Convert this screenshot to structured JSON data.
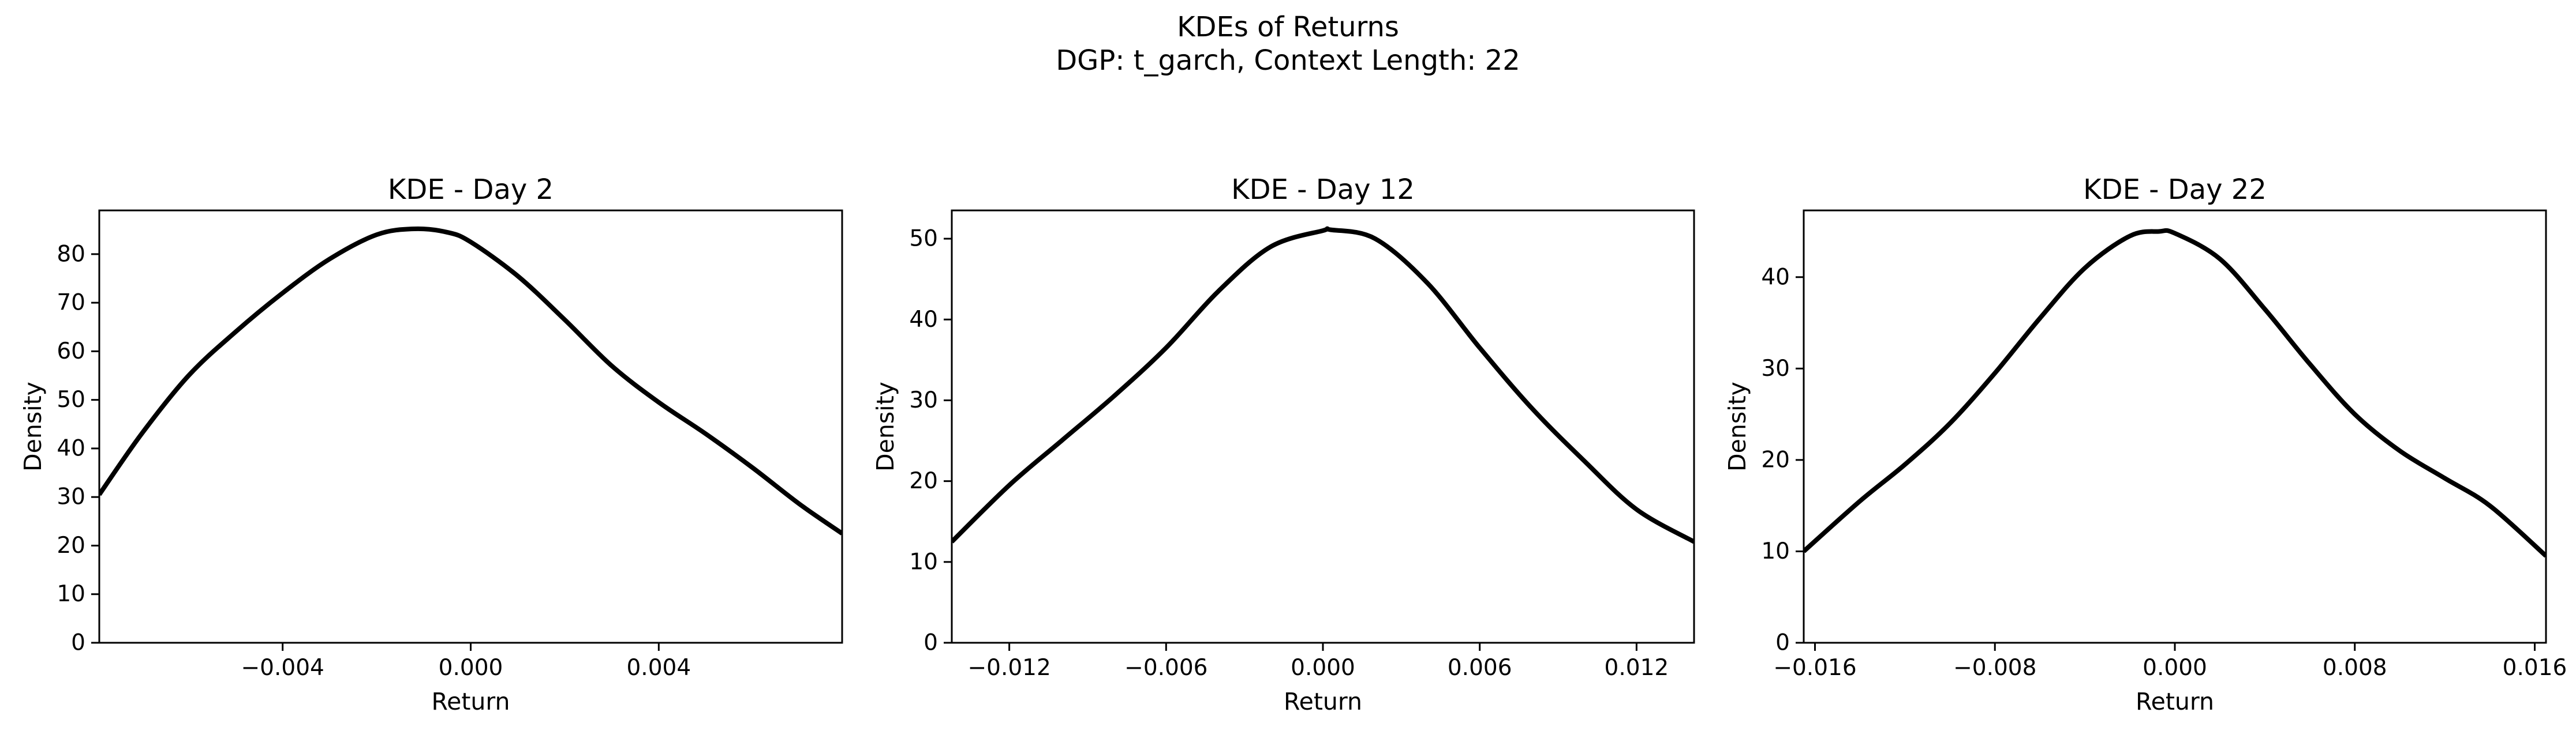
{
  "figure": {
    "title_line1": "KDEs of Returns",
    "title_line2": "DGP: t_garch, Context Length: 22"
  },
  "colors": {
    "line": "#000000",
    "axes": "#000000",
    "background": "#ffffff"
  },
  "chart_data": [
    {
      "type": "line",
      "title": "KDE - Day 2",
      "xlabel": "Return",
      "ylabel": "Density",
      "xlim": [
        -0.0079,
        0.0079
      ],
      "ylim": [
        0,
        89
      ],
      "xticks": [
        -0.004,
        0.0,
        0.004
      ],
      "xtick_labels": [
        "−0.004",
        "0.000",
        "0.004"
      ],
      "yticks": [
        0,
        10,
        20,
        30,
        40,
        50,
        60,
        70,
        80
      ],
      "ytick_labels": [
        "0",
        "10",
        "20",
        "30",
        "40",
        "50",
        "60",
        "70",
        "80"
      ],
      "grid": false,
      "series": [
        {
          "x": [
            -0.0079,
            -0.007,
            -0.006,
            -0.005,
            -0.004,
            -0.003,
            -0.002,
            -0.0012,
            -0.0005,
            0.0,
            0.001,
            0.002,
            0.003,
            0.004,
            0.005,
            0.006,
            0.007,
            0.0079
          ],
          "y": [
            30.5,
            43,
            55,
            64,
            72,
            79,
            84,
            85.2,
            84.5,
            82.5,
            75.5,
            66.5,
            57,
            49.5,
            43,
            36,
            28.5,
            22.5
          ]
        }
      ]
    },
    {
      "type": "line",
      "title": "KDE - Day 12",
      "xlabel": "Return",
      "ylabel": "Density",
      "xlim": [
        -0.0142,
        0.0142
      ],
      "ylim": [
        0,
        53.5
      ],
      "xticks": [
        -0.012,
        -0.006,
        0.0,
        0.006,
        0.012
      ],
      "xtick_labels": [
        "−0.012",
        "−0.006",
        "0.000",
        "0.006",
        "0.012"
      ],
      "yticks": [
        0,
        10,
        20,
        30,
        40,
        50
      ],
      "ytick_labels": [
        "0",
        "10",
        "20",
        "30",
        "40",
        "50"
      ],
      "grid": false,
      "series": [
        {
          "x": [
            -0.0142,
            -0.012,
            -0.01,
            -0.008,
            -0.006,
            -0.004,
            -0.002,
            0.0,
            0.0003,
            0.002,
            0.004,
            0.006,
            0.008,
            0.01,
            0.012,
            0.0142
          ],
          "y": [
            12.5,
            19.5,
            25,
            30.5,
            36.5,
            43.5,
            49,
            51,
            51.1,
            50,
            44.5,
            36.5,
            29,
            22.5,
            16.5,
            12.5
          ]
        }
      ]
    },
    {
      "type": "line",
      "title": "KDE - Day 22",
      "xlabel": "Return",
      "ylabel": "Density",
      "xlim": [
        -0.0165,
        0.0165
      ],
      "ylim": [
        0,
        47.3
      ],
      "xticks": [
        -0.016,
        -0.008,
        0.0,
        0.008,
        0.016
      ],
      "xtick_labels": [
        "−0.016",
        "−0.008",
        "0.000",
        "0.008",
        "0.016"
      ],
      "yticks": [
        0,
        10,
        20,
        30,
        40
      ],
      "ytick_labels": [
        "0",
        "10",
        "20",
        "30",
        "40"
      ],
      "grid": false,
      "series": [
        {
          "x": [
            -0.0165,
            -0.014,
            -0.012,
            -0.01,
            -0.008,
            -0.006,
            -0.004,
            -0.002,
            -0.0007,
            0.0,
            0.002,
            0.004,
            0.006,
            0.008,
            0.01,
            0.012,
            0.014,
            0.0165
          ],
          "y": [
            10,
            15.5,
            19.5,
            24,
            29.5,
            35.5,
            41,
            44.5,
            45,
            44.8,
            42,
            36.5,
            30.5,
            25,
            21,
            18,
            15,
            9.5
          ]
        }
      ]
    }
  ]
}
